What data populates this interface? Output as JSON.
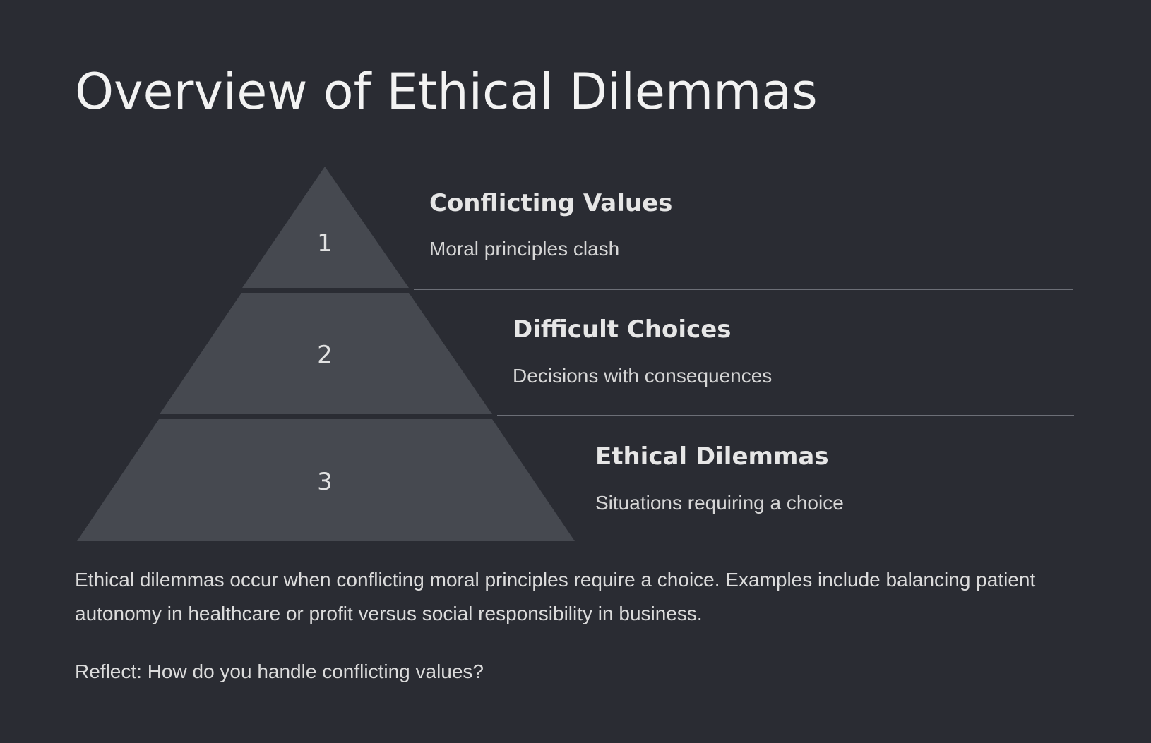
{
  "title": "Overview of Ethical Dilemmas",
  "colors": {
    "background": "#2a2c33",
    "tier_fill": "#464950",
    "divider": "#6c6f77"
  },
  "pyramid": {
    "tiers": [
      {
        "number": "1",
        "heading": "Conflicting Values",
        "description": "Moral principles clash"
      },
      {
        "number": "2",
        "heading": "Difficult Choices",
        "description": "Decisions with consequences"
      },
      {
        "number": "3",
        "heading": "Ethical Dilemmas",
        "description": "Situations requiring a choice"
      }
    ]
  },
  "body": {
    "paragraph": "Ethical dilemmas occur when conflicting moral principles require a choice. Examples include balancing patient autonomy in healthcare or profit versus social responsibility in business.",
    "reflect": "Reflect: How do you handle conflicting values?"
  }
}
